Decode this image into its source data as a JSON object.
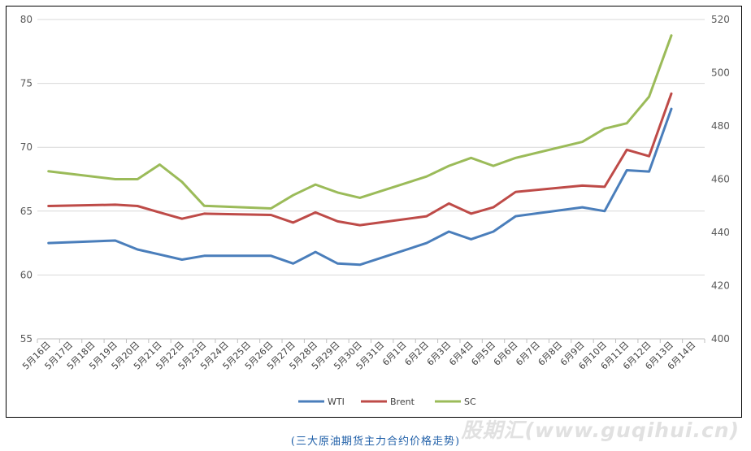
{
  "chart_data": {
    "type": "line",
    "title": "",
    "x": [
      "5月16日",
      "5月17日",
      "5月18日",
      "5月19日",
      "5月20日",
      "5月21日",
      "5月22日",
      "5月23日",
      "5月24日",
      "5月25日",
      "5月26日",
      "5月27日",
      "5月28日",
      "5月29日",
      "5月30日",
      "5月31日",
      "6月1日",
      "6月2日",
      "6月3日",
      "6月4日",
      "6月5日",
      "6月6日",
      "6月7日",
      "6月8日",
      "6月9日",
      "6月10日",
      "6月11日",
      "6月12日",
      "6月13日",
      "6月14日"
    ],
    "y_left": {
      "ylim": [
        55,
        80
      ],
      "ticks": [
        55,
        60,
        65,
        70,
        75,
        80
      ]
    },
    "y_right": {
      "ylim": [
        400,
        520
      ],
      "ticks": [
        400,
        420,
        440,
        460,
        480,
        500,
        520
      ]
    },
    "grid": true,
    "legend_position": "bottom",
    "series": [
      {
        "name": "WTI",
        "axis": "left",
        "color": "#4a7ebb",
        "points": [
          [
            "5月16日",
            62.5
          ],
          [
            "5月19日",
            62.7
          ],
          [
            "5月20日",
            62.0
          ],
          [
            "5月21日",
            61.6
          ],
          [
            "5月22日",
            61.2
          ],
          [
            "5月23日",
            61.5
          ],
          [
            "5月26日",
            61.5
          ],
          [
            "5月27日",
            60.9
          ],
          [
            "5月28日",
            61.8
          ],
          [
            "5月29日",
            60.9
          ],
          [
            "5月30日",
            60.8
          ],
          [
            "6月2日",
            62.5
          ],
          [
            "6月3日",
            63.4
          ],
          [
            "6月4日",
            62.8
          ],
          [
            "6月5日",
            63.4
          ],
          [
            "6月6日",
            64.6
          ],
          [
            "6月9日",
            65.3
          ],
          [
            "6月10日",
            65.0
          ],
          [
            "6月11日",
            68.2
          ],
          [
            "6月12日",
            68.1
          ],
          [
            "6月13日",
            73.0
          ]
        ]
      },
      {
        "name": "Brent",
        "axis": "left",
        "color": "#be4b48",
        "points": [
          [
            "5月16日",
            65.4
          ],
          [
            "5月19日",
            65.5
          ],
          [
            "5月20日",
            65.4
          ],
          [
            "5月21日",
            64.9
          ],
          [
            "5月22日",
            64.4
          ],
          [
            "5月23日",
            64.8
          ],
          [
            "5月26日",
            64.7
          ],
          [
            "5月27日",
            64.1
          ],
          [
            "5月28日",
            64.9
          ],
          [
            "5月29日",
            64.2
          ],
          [
            "5月30日",
            63.9
          ],
          [
            "6月2日",
            64.6
          ],
          [
            "6月3日",
            65.6
          ],
          [
            "6月4日",
            64.8
          ],
          [
            "6月5日",
            65.3
          ],
          [
            "6月6日",
            66.5
          ],
          [
            "6月9日",
            67.0
          ],
          [
            "6月10日",
            66.9
          ],
          [
            "6月11日",
            69.8
          ],
          [
            "6月12日",
            69.3
          ],
          [
            "6月13日",
            74.2
          ]
        ]
      },
      {
        "name": "SC",
        "axis": "right",
        "color": "#9bbb59",
        "points": [
          [
            "5月16日",
            463
          ],
          [
            "5月19日",
            460
          ],
          [
            "5月20日",
            460
          ],
          [
            "5月21日",
            465.5
          ],
          [
            "5月22日",
            459
          ],
          [
            "5月23日",
            450
          ],
          [
            "5月26日",
            449
          ],
          [
            "5月27日",
            454
          ],
          [
            "5月28日",
            458
          ],
          [
            "5月29日",
            455
          ],
          [
            "5月30日",
            453
          ],
          [
            "6月2日",
            461
          ],
          [
            "6月3日",
            465
          ],
          [
            "6月4日",
            468
          ],
          [
            "6月5日",
            465
          ],
          [
            "6月6日",
            468
          ],
          [
            "6月9日",
            474
          ],
          [
            "6月10日",
            479
          ],
          [
            "6月11日",
            481
          ],
          [
            "6月12日",
            491
          ],
          [
            "6月13日",
            514
          ]
        ]
      }
    ]
  },
  "caption": "(三大原油期货主力合约价格走势)",
  "watermark": "股期汇(www.guqihui.cn)"
}
